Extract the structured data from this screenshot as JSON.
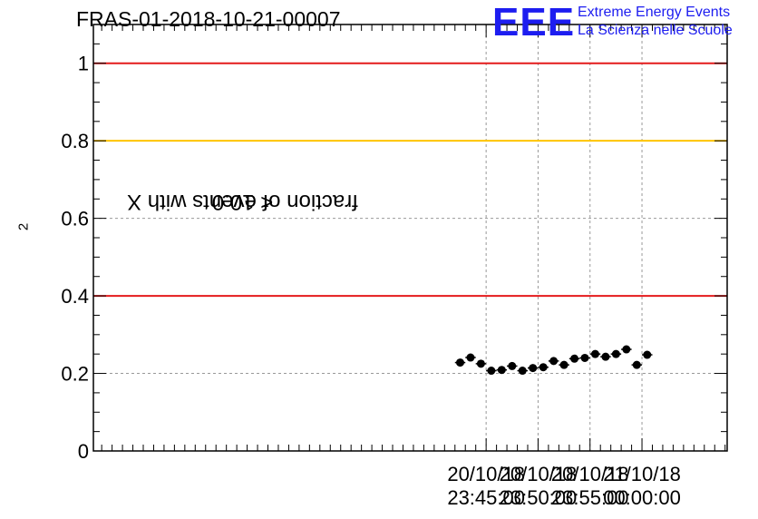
{
  "header": {
    "title": "FRAS-01-2018-10-21-00007",
    "logo_text": "EEE",
    "logo_line1": "Extreme Energy Events",
    "logo_line2": "La Scienza nelle Scuole"
  },
  "chart_data": {
    "type": "scatter",
    "title": "FRAS-01-2018-10-21-00007",
    "ylabel_prefix": "fraction of events with X",
    "ylabel_sup": "2",
    "ylabel_suffix": " < 10.0",
    "xlabel": "",
    "xlim_minutes": [
      -42.8,
      18.2
    ],
    "ylim": [
      0,
      1.1
    ],
    "yticks": [
      0,
      0.2,
      0.4,
      0.6,
      0.8,
      1
    ],
    "ytick_labels": [
      "0",
      "0.2",
      "0.4",
      "0.6",
      "0.8",
      "1"
    ],
    "xticks": [
      {
        "date": "20/10/18",
        "time": "23:45:00"
      },
      {
        "date": "20/10/18",
        "time": "23:50:00"
      },
      {
        "date": "20/10/18",
        "time": "23:55:00"
      },
      {
        "date": "21/10/18",
        "time": "00:00:00"
      }
    ],
    "grid": true,
    "reference_lines": [
      {
        "y": 1.0,
        "color": "#e41a1c"
      },
      {
        "y": 0.8,
        "color": "#ffc400"
      },
      {
        "y": 0.4,
        "color": "#e41a1c"
      }
    ],
    "series": [
      {
        "x": [
          "20/10/18 23:42:30",
          "20/10/18 23:43:30",
          "20/10/18 23:44:30",
          "20/10/18 23:45:30",
          "20/10/18 23:46:30",
          "20/10/18 23:47:30",
          "20/10/18 23:48:30",
          "20/10/18 23:49:30",
          "20/10/18 23:50:30",
          "20/10/18 23:51:30",
          "20/10/18 23:52:30",
          "20/10/18 23:53:30",
          "20/10/18 23:54:30",
          "20/10/18 23:55:30",
          "20/10/18 23:56:30",
          "20/10/18 23:57:30",
          "20/10/18 23:58:30",
          "20/10/18 23:59:30",
          "21/10/18 00:00:30"
        ],
        "y": [
          0.228,
          0.241,
          0.225,
          0.207,
          0.209,
          0.219,
          0.207,
          0.214,
          0.216,
          0.232,
          0.222,
          0.238,
          0.24,
          0.25,
          0.243,
          0.25,
          0.262,
          0.222,
          0.248
        ],
        "color": "#000000"
      }
    ]
  }
}
